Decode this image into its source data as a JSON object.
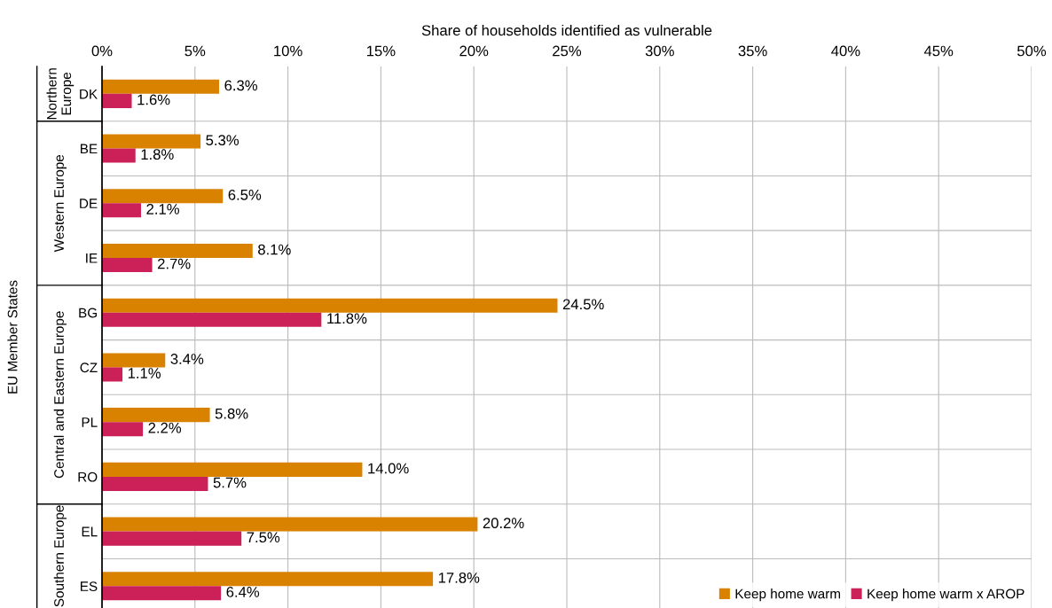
{
  "chart_data": {
    "type": "bar",
    "orientation": "horizontal",
    "xlabel": "Share of households identified as vulnerable",
    "categories": [
      "DK",
      "BE",
      "DE",
      "IE",
      "BG",
      "CZ",
      "PL",
      "RO",
      "EL",
      "ES"
    ],
    "series": [
      {
        "name": "Keep home warm",
        "color": "#d98200",
        "values": [
          6.3,
          5.3,
          6.5,
          8.1,
          24.5,
          3.4,
          5.8,
          14.0,
          20.2,
          17.8
        ],
        "value_labels": [
          "6.3%",
          "5.3%",
          "6.5%",
          "8.1%",
          "24.5%",
          "3.4%",
          "5.8%",
          "14.0%",
          "20.2%",
          "17.8%"
        ]
      },
      {
        "name": "Keep home warm x AROP",
        "color": "#cc2158",
        "values": [
          1.6,
          1.8,
          2.1,
          2.7,
          11.8,
          1.1,
          2.2,
          5.7,
          7.5,
          6.4
        ],
        "value_labels": [
          "1.6%",
          "1.8%",
          "2.1%",
          "2.7%",
          "11.8%",
          "1.1%",
          "2.2%",
          "5.7%",
          "7.5%",
          "6.4%"
        ]
      }
    ],
    "xlim": [
      0,
      50
    ],
    "xticks": [
      {
        "value": 0,
        "label": "0%"
      },
      {
        "value": 5,
        "label": "5%"
      },
      {
        "value": 10,
        "label": "10%"
      },
      {
        "value": 15,
        "label": "15%"
      },
      {
        "value": 20,
        "label": "20%"
      },
      {
        "value": 25,
        "label": "25%"
      },
      {
        "value": 30,
        "label": "30%"
      },
      {
        "value": 35,
        "label": "35%"
      },
      {
        "value": 40,
        "label": "40%"
      },
      {
        "value": 45,
        "label": "45%"
      },
      {
        "value": 50,
        "label": "50%"
      }
    ],
    "grid": "x",
    "legend": "bottom right",
    "annotations": [
      "Northern Europe",
      "Western Europe",
      "Central and Eastern Europe",
      "Southern Europe",
      "EU Member States"
    ]
  }
}
